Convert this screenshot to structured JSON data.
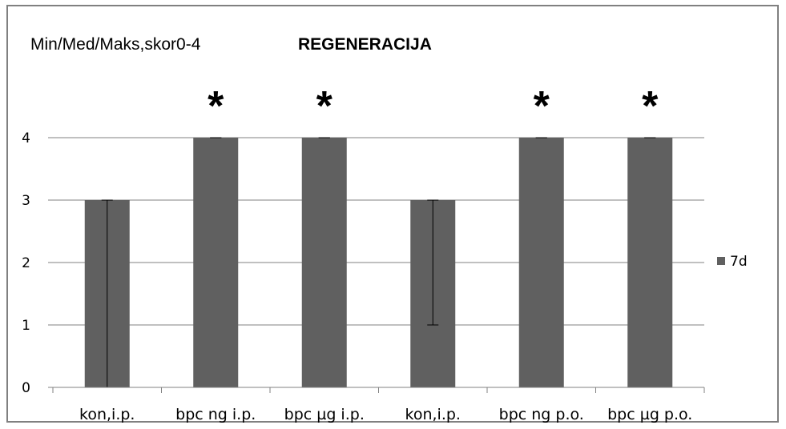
{
  "chart_data": {
    "type": "bar",
    "title": "REGENERACIJA",
    "ylabel": "Min/Med/Maks,skor0-4",
    "xlabel": "",
    "categories": [
      "kon,i.p.",
      "bpc ng i.p.",
      "bpc µg i.p.",
      "kon,i.p.",
      "bpc ng p.o.",
      "bpc µg p.o."
    ],
    "series": [
      {
        "name": "7d",
        "values": [
          3,
          4,
          4,
          3,
          4,
          4
        ],
        "min": [
          0,
          4,
          4,
          1,
          4,
          4
        ],
        "max": [
          3,
          4,
          4,
          3,
          4,
          4
        ]
      }
    ],
    "significance": [
      "",
      "*",
      "*",
      "",
      "*",
      "*"
    ],
    "ylim": [
      0,
      4
    ],
    "yticks": [
      0,
      1,
      2,
      3,
      4
    ],
    "grid": true,
    "legend": "right",
    "bar_color": "#606060"
  }
}
